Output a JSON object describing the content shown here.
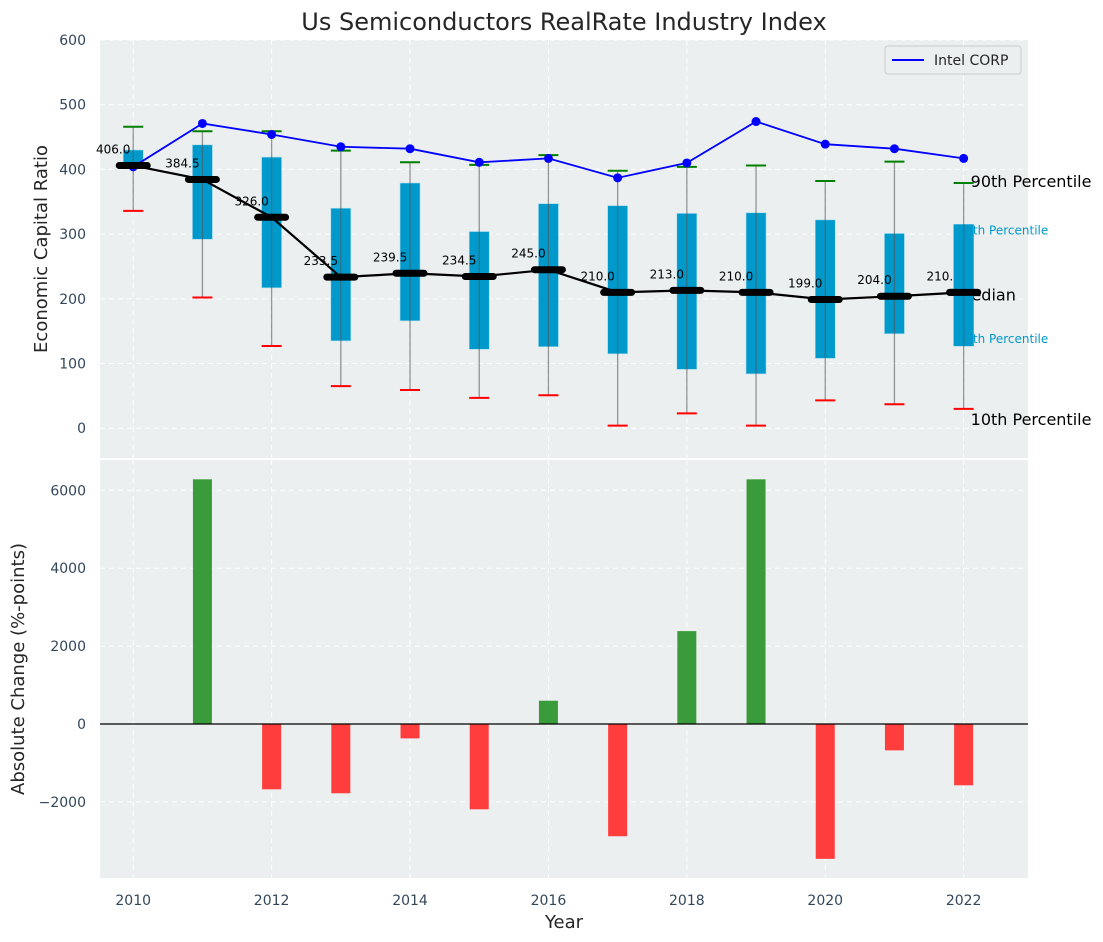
{
  "chart_data": [
    {
      "type": "box",
      "title": "Us Semiconductors RealRate Industry Index",
      "xlabel": "",
      "ylabel": "Economic Capital Ratio",
      "ylim": [
        -46,
        600
      ],
      "xlim": [
        2009.52,
        2022.93
      ],
      "yticks": [
        0,
        100,
        200,
        300,
        400,
        500,
        600
      ],
      "grid": true,
      "legend": {
        "position": "top-right",
        "entries": [
          "Intel CORP"
        ]
      },
      "x": [
        2010,
        2011,
        2012,
        2013,
        2014,
        2015,
        2016,
        2017,
        2018,
        2019,
        2020,
        2021,
        2022
      ],
      "p90": [
        466,
        459,
        459,
        429,
        411,
        407,
        422,
        398,
        404,
        406,
        382,
        412,
        379
      ],
      "p75": [
        430,
        438,
        419,
        340,
        379,
        304,
        347,
        344,
        332,
        333,
        322,
        301,
        315
      ],
      "median": [
        406.0,
        384.5,
        326.0,
        233.5,
        239.5,
        234.5,
        245.0,
        210.0,
        213.0,
        210.0,
        199.0,
        204.0,
        210.0
      ],
      "median_labels": [
        "406.0",
        "384.5",
        "326.0",
        "233.5",
        "239.5",
        "234.5",
        "245.0",
        "210.0",
        "213.0",
        "210.0",
        "199.0",
        "204.0",
        "210.0"
      ],
      "p25": [
        403,
        292,
        217,
        135,
        166,
        122,
        126,
        115,
        91,
        84,
        108,
        146,
        127
      ],
      "p10": [
        336,
        202,
        127,
        65,
        59,
        47,
        51,
        4,
        23,
        4,
        43,
        37,
        30
      ],
      "series": [
        {
          "name": "Intel CORP",
          "values": [
            404,
            471,
            454,
            435,
            432,
            411,
            417,
            387,
            410,
            474,
            439,
            432,
            417
          ]
        }
      ],
      "annotations": [
        "90th Percentile",
        "75th Percentile",
        "Median",
        "25th Percentile",
        "10th Percentile"
      ],
      "colors": {
        "box": "#0099cc",
        "p90": "#008000",
        "p10": "#ff0000",
        "median": "#000000",
        "intel": "#0000ff",
        "bg": "#ebeff0"
      }
    },
    {
      "type": "bar",
      "xlabel": "Year",
      "ylabel": "Absolute Change (%-points)",
      "ylim": [
        -3954,
        6778
      ],
      "xlim": [
        2009.52,
        2022.93
      ],
      "yticks": [
        -2000,
        0,
        2000,
        4000,
        6000
      ],
      "xticks": [
        2010,
        2012,
        2014,
        2016,
        2018,
        2020,
        2022
      ],
      "grid": true,
      "x": [
        2011,
        2012,
        2013,
        2014,
        2015,
        2016,
        2017,
        2018,
        2019,
        2020,
        2021,
        2022
      ],
      "values": [
        6282,
        -1677,
        -1779,
        -369,
        -2190,
        597,
        -2882,
        2385,
        6282,
        -3462,
        -677,
        -1574
      ],
      "colors": {
        "positive": "#3a9b3a",
        "negative": "#ff3d3d"
      }
    }
  ]
}
